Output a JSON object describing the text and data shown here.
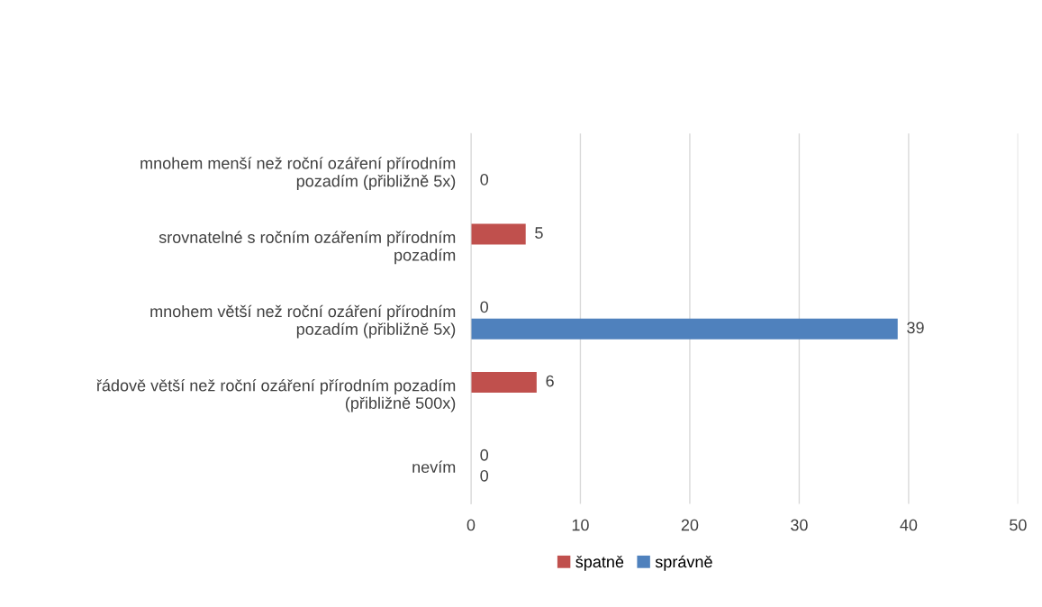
{
  "chart_data": {
    "type": "bar",
    "orientation": "horizontal",
    "categories": [
      "mnohem menší než roční ozáření přírodním\npozadím (přibližně 5x)",
      "srovnatelné s ročním ozářením přírodním\npozadím",
      "mnohem větší než roční ozáření přírodním\npozadím (přibližně 5x)",
      "řádově větší než roční ozáření přírodním pozadím\n(přibližně 500x)",
      "nevím"
    ],
    "series": [
      {
        "name": "špatně",
        "color": "#c0504d",
        "values": [
          null,
          5,
          0,
          6,
          0
        ]
      },
      {
        "name": "správně",
        "color": "#4f81bd",
        "values": [
          0,
          null,
          39,
          null,
          0
        ]
      }
    ],
    "xlim": [
      0,
      50
    ],
    "xticks": [
      0,
      10,
      20,
      30,
      40,
      50
    ],
    "grid": "x",
    "legend": "bottom",
    "data_labels": true
  }
}
